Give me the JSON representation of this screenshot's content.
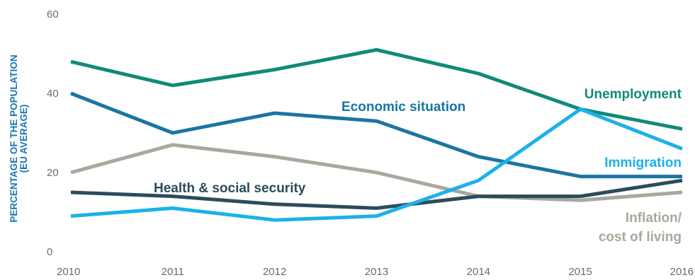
{
  "chart_data": {
    "type": "line",
    "x": [
      "2010",
      "2011",
      "2012",
      "2013",
      "2014",
      "2015",
      "2016"
    ],
    "ylabel_lines": [
      "PERCENTAGE OF THE POPULATION",
      "(EU AVERAGE)"
    ],
    "ylim": [
      0,
      60
    ],
    "yticks": [
      "0",
      "20",
      "40",
      "60"
    ],
    "grid": false,
    "series": [
      {
        "name": "Unemployment",
        "label_lines": [
          "Unemployment"
        ],
        "color": "#12897b",
        "values": [
          48,
          42,
          46,
          51,
          45,
          36,
          31
        ]
      },
      {
        "name": "Economic situation",
        "label_lines": [
          "Economic situation"
        ],
        "color": "#1b75a3",
        "values": [
          40,
          30,
          35,
          33,
          24,
          19,
          19
        ]
      },
      {
        "name": "Immigration",
        "label_lines": [
          "Immigration"
        ],
        "color": "#1cb1ea",
        "values": [
          9,
          11,
          8,
          9,
          18,
          36,
          26
        ]
      },
      {
        "name": "Health & social security",
        "label_lines": [
          "Health & social security"
        ],
        "color": "#2d4b5c",
        "values": [
          15,
          14,
          12,
          11,
          14,
          14,
          18
        ]
      },
      {
        "name": "Inflation/ cost of living",
        "label_lines": [
          "Inflation/",
          "cost of living"
        ],
        "color": "#a8a89e",
        "values": [
          20,
          27,
          24,
          20,
          14,
          13,
          15
        ]
      }
    ]
  }
}
